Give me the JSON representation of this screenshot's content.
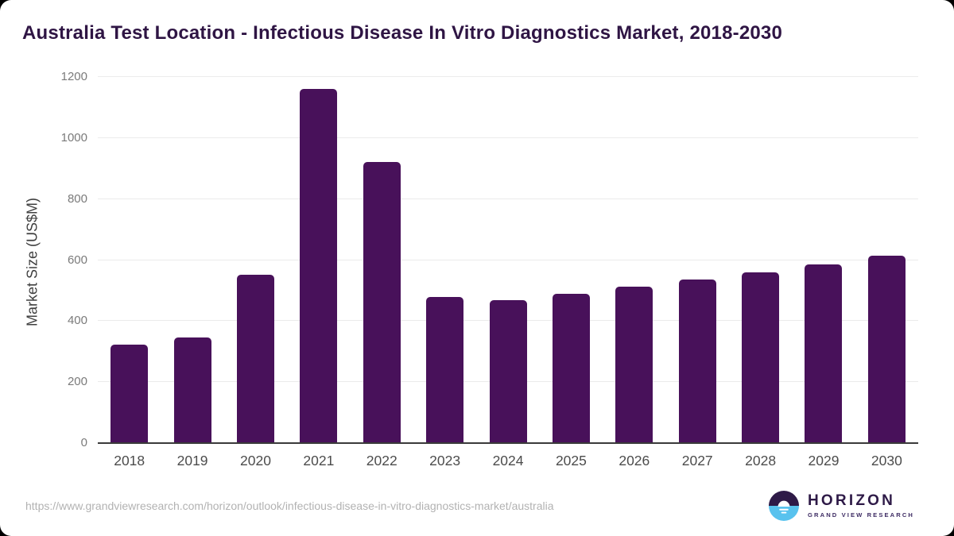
{
  "header": {
    "title": "Australia Test Location - Infectious Disease In Vitro Diagnostics Market, 2018-2030"
  },
  "chart_data": {
    "type": "bar",
    "title": "Australia Test Location - Infectious Disease In Vitro Diagnostics Market, 2018-2030",
    "categories": [
      "2018",
      "2019",
      "2020",
      "2021",
      "2022",
      "2023",
      "2024",
      "2025",
      "2026",
      "2027",
      "2028",
      "2029",
      "2030"
    ],
    "values": [
      323,
      346,
      552,
      1160,
      922,
      478,
      468,
      490,
      514,
      537,
      560,
      587,
      615
    ],
    "xlabel": "",
    "ylabel": "Market Size (US$M)",
    "ylim": [
      0,
      1200
    ],
    "yticks": [
      0,
      200,
      400,
      600,
      800,
      1000,
      1200
    ],
    "grid": true,
    "legend": "none",
    "bar_color": "#48115a"
  },
  "footer": {
    "source_url": "https://www.grandviewresearch.com/horizon/outlook/infectious-disease-in-vitro-diagnostics-market/australia",
    "logo": {
      "brand": "HORIZON",
      "sub_brand": "GRAND VIEW RESEARCH"
    }
  },
  "colors": {
    "bar": "#48115a",
    "title_text": "#2f1544",
    "logo_top": "#2e1a47",
    "logo_bottom": "#58c2ee",
    "gridline": "#ebebeb",
    "axis_line": "#3a3a3a",
    "y_tick_text": "#7a7a7a",
    "x_tick_text": "#4c4c4c",
    "url_text": "#b2b2b2"
  }
}
